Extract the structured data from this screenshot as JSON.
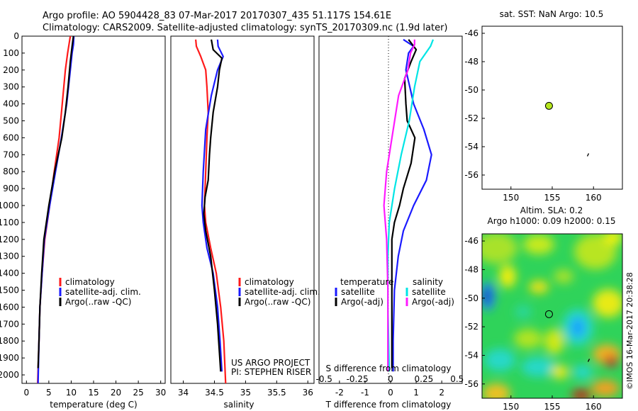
{
  "header": {
    "line1": "Argo profile: AO 5904428_83 07-Mar-2017 20170307_435 51.117S 154.61E",
    "line2": "Climatology: CARS2009. Satellite-adjusted climatology: synTS_20170309.nc (1.9d later)"
  },
  "colors": {
    "climatology": "#ff1a1a",
    "satellite": "#1a1aff",
    "argo": "#000000",
    "sat_salinity": "#00e5e5",
    "argo_adj_salinity": "#ff1aff",
    "marker": "#b5e61d"
  },
  "credits": {
    "line1": "US ARGO PROJECT",
    "line2": "PI: STEPHEN RISER"
  },
  "watermark": "©IMOS 16-Mar-2017 20:38:28",
  "map_titles": {
    "sst": "sat. SST: NaN Argo: 10.5",
    "sla1": "Altim. SLA: 0.2",
    "sla2": "Argo h1000: 0.09 h2000: 0.15"
  },
  "legend_main": {
    "climatology": "climatology",
    "satellite": "satellite-adj. clim.",
    "argo": "Argo(..raw -QC)"
  },
  "legend_diff": {
    "temp_header": "temperature",
    "sal_header": "salinity",
    "satellite": "satellite",
    "argo_adj": "Argo(-adj)"
  },
  "chart_data": [
    {
      "type": "line",
      "xlabel": "temperature (deg C)",
      "xlim": [
        -1,
        31
      ],
      "xticks": [
        "0",
        "5",
        "10",
        "15",
        "20",
        "25",
        "30"
      ],
      "ylim": [
        2050,
        0
      ],
      "yticks": [
        "0",
        "100",
        "200",
        "300",
        "400",
        "500",
        "600",
        "700",
        "800",
        "900",
        "1000",
        "1100",
        "1200",
        "1300",
        "1400",
        "1500",
        "1600",
        "1700",
        "1800",
        "1900",
        "2000"
      ],
      "series": [
        {
          "name": "climatology",
          "color": "#ff1a1a",
          "points": [
            [
              9.8,
              0
            ],
            [
              9.5,
              50
            ],
            [
              9.2,
              100
            ],
            [
              8.7,
              200
            ],
            [
              8.0,
              400
            ],
            [
              7.3,
              600
            ],
            [
              6.2,
              800
            ],
            [
              5.2,
              1000
            ],
            [
              4.1,
              1200
            ],
            [
              3.5,
              1400
            ],
            [
              3.0,
              1600
            ],
            [
              2.8,
              1800
            ],
            [
              2.5,
              2050
            ]
          ]
        },
        {
          "name": "satellite-adj. clim.",
          "color": "#1a1aff",
          "points": [
            [
              10.6,
              0
            ],
            [
              10.5,
              50
            ],
            [
              10.2,
              100
            ],
            [
              9.8,
              200
            ],
            [
              9.0,
              400
            ],
            [
              7.8,
              600
            ],
            [
              6.5,
              800
            ],
            [
              5.2,
              1000
            ],
            [
              4.0,
              1200
            ],
            [
              3.5,
              1400
            ],
            [
              3.0,
              1600
            ],
            [
              2.8,
              1800
            ],
            [
              2.6,
              2050
            ]
          ]
        },
        {
          "name": "Argo(..raw -QC)",
          "color": "#000000",
          "points": [
            [
              10.5,
              0
            ],
            [
              10.2,
              60
            ],
            [
              9.8,
              150
            ],
            [
              9.3,
              300
            ],
            [
              8.7,
              450
            ],
            [
              7.9,
              600
            ],
            [
              6.3,
              800
            ],
            [
              5.0,
              1000
            ],
            [
              3.9,
              1200
            ],
            [
              3.4,
              1400
            ],
            [
              3.0,
              1600
            ],
            [
              2.8,
              1800
            ],
            [
              2.6,
              1960
            ]
          ]
        }
      ]
    },
    {
      "type": "line",
      "xlabel": "salinity",
      "xlim": [
        33.8,
        36.1
      ],
      "xticks": [
        "34",
        "34.5",
        "35",
        "35.5",
        "36"
      ],
      "ylim": [
        2050,
        0
      ],
      "series": [
        {
          "name": "climatology",
          "color": "#ff1a1a",
          "points": [
            [
              34.2,
              20
            ],
            [
              34.21,
              60
            ],
            [
              34.28,
              120
            ],
            [
              34.36,
              200
            ],
            [
              34.38,
              300
            ],
            [
              34.4,
              450
            ],
            [
              34.38,
              600
            ],
            [
              34.36,
              800
            ],
            [
              34.34,
              1000
            ],
            [
              34.36,
              1100
            ],
            [
              34.44,
              1250
            ],
            [
              34.53,
              1400
            ],
            [
              34.6,
              1600
            ],
            [
              34.65,
              1800
            ],
            [
              34.68,
              2050
            ]
          ]
        },
        {
          "name": "satellite-adj. clim.",
          "color": "#1a1aff",
          "points": [
            [
              34.55,
              20
            ],
            [
              34.56,
              60
            ],
            [
              34.64,
              120
            ],
            [
              34.55,
              200
            ],
            [
              34.45,
              350
            ],
            [
              34.36,
              550
            ],
            [
              34.32,
              800
            ],
            [
              34.3,
              1000
            ],
            [
              34.32,
              1100
            ],
            [
              34.38,
              1250
            ],
            [
              34.48,
              1400
            ],
            [
              34.55,
              1600
            ],
            [
              34.59,
              1800
            ],
            [
              34.62,
              1980
            ]
          ]
        },
        {
          "name": "Argo(..raw -QC)",
          "color": "#000000",
          "points": [
            [
              34.45,
              20
            ],
            [
              34.48,
              80
            ],
            [
              34.62,
              130
            ],
            [
              34.58,
              200
            ],
            [
              34.55,
              300
            ],
            [
              34.48,
              450
            ],
            [
              34.44,
              600
            ],
            [
              34.42,
              700
            ],
            [
              34.4,
              850
            ],
            [
              34.35,
              950
            ],
            [
              34.33,
              1050
            ],
            [
              34.36,
              1150
            ],
            [
              34.44,
              1300
            ],
            [
              34.5,
              1500
            ],
            [
              34.55,
              1700
            ],
            [
              34.6,
              1980
            ]
          ]
        }
      ]
    },
    {
      "type": "line",
      "xlabel": "T difference from climatology",
      "x2label": "S difference from climatology",
      "xlim": [
        -2.8,
        2.8
      ],
      "xticks": [
        "-2",
        "-1",
        "0",
        "1",
        "2"
      ],
      "x2ticks": [
        "-0.5",
        "-0.25",
        "0",
        "0.25",
        "0.5"
      ],
      "ylim": [
        2050,
        0
      ],
      "series": [
        {
          "name": "temperature satellite",
          "color": "#1a1aff",
          "points": [
            [
              0.5,
              20
            ],
            [
              0.9,
              60
            ],
            [
              0.7,
              100
            ],
            [
              0.6,
              200
            ],
            [
              0.75,
              300
            ],
            [
              0.9,
              400
            ],
            [
              1.3,
              550
            ],
            [
              1.6,
              700
            ],
            [
              1.4,
              850
            ],
            [
              0.9,
              1000
            ],
            [
              0.5,
              1150
            ],
            [
              0.3,
              1300
            ],
            [
              0.15,
              1500
            ],
            [
              0.1,
              1800
            ],
            [
              0.1,
              1980
            ]
          ]
        },
        {
          "name": "temperature Argo(-adj)",
          "color": "#000000",
          "points": [
            [
              0.7,
              20
            ],
            [
              1.0,
              80
            ],
            [
              0.8,
              150
            ],
            [
              0.55,
              250
            ],
            [
              0.6,
              400
            ],
            [
              0.65,
              500
            ],
            [
              0.95,
              600
            ],
            [
              0.8,
              750
            ],
            [
              0.5,
              900
            ],
            [
              0.35,
              1000
            ],
            [
              0.15,
              1100
            ],
            [
              0.05,
              1200
            ],
            [
              0.05,
              1500
            ],
            [
              0.05,
              1800
            ],
            [
              0.05,
              1960
            ]
          ]
        },
        {
          "name": "salinity satellite",
          "color": "#00e5e5",
          "points": [
            [
              0.32,
              20
            ],
            [
              0.3,
              60
            ],
            [
              0.22,
              150
            ],
            [
              0.18,
              300
            ],
            [
              0.14,
              500
            ],
            [
              0.08,
              700
            ],
            [
              0.03,
              900
            ],
            [
              -0.01,
              1100
            ],
            [
              -0.02,
              1300
            ],
            [
              -0.02,
              1600
            ],
            [
              -0.01,
              1980
            ]
          ]
        },
        {
          "name": "salinity Argo(-adj)",
          "color": "#ff1aff",
          "points": [
            [
              0.18,
              20
            ],
            [
              0.18,
              50
            ],
            [
              0.15,
              100
            ],
            [
              0.13,
              200
            ],
            [
              0.06,
              350
            ],
            [
              0.01,
              600
            ],
            [
              -0.03,
              800
            ],
            [
              -0.05,
              1000
            ],
            [
              -0.04,
              1100
            ],
            [
              -0.03,
              1200
            ],
            [
              -0.02,
              1500
            ],
            [
              -0.02,
              1980
            ]
          ]
        }
      ]
    }
  ],
  "sst_map": {
    "xticks": [
      "150",
      "155",
      "160"
    ],
    "yticks": [
      "-46",
      "-48",
      "-50",
      "-52",
      "-54",
      "-56"
    ],
    "xlim": [
      146.5,
      163.5
    ],
    "ylim": [
      -57,
      -45.5
    ],
    "argo_position": {
      "lon": 154.61,
      "lat": -51.117
    }
  },
  "sla_map": {
    "xticks": [
      "150",
      "155",
      "160"
    ],
    "yticks": [
      "-46",
      "-48",
      "-50",
      "-52",
      "-54",
      "-56"
    ],
    "xlim": [
      146.5,
      163.5
    ],
    "ylim": [
      -57,
      -45.5
    ],
    "argo_position": {
      "lon": 154.61,
      "lat": -51.117
    }
  }
}
